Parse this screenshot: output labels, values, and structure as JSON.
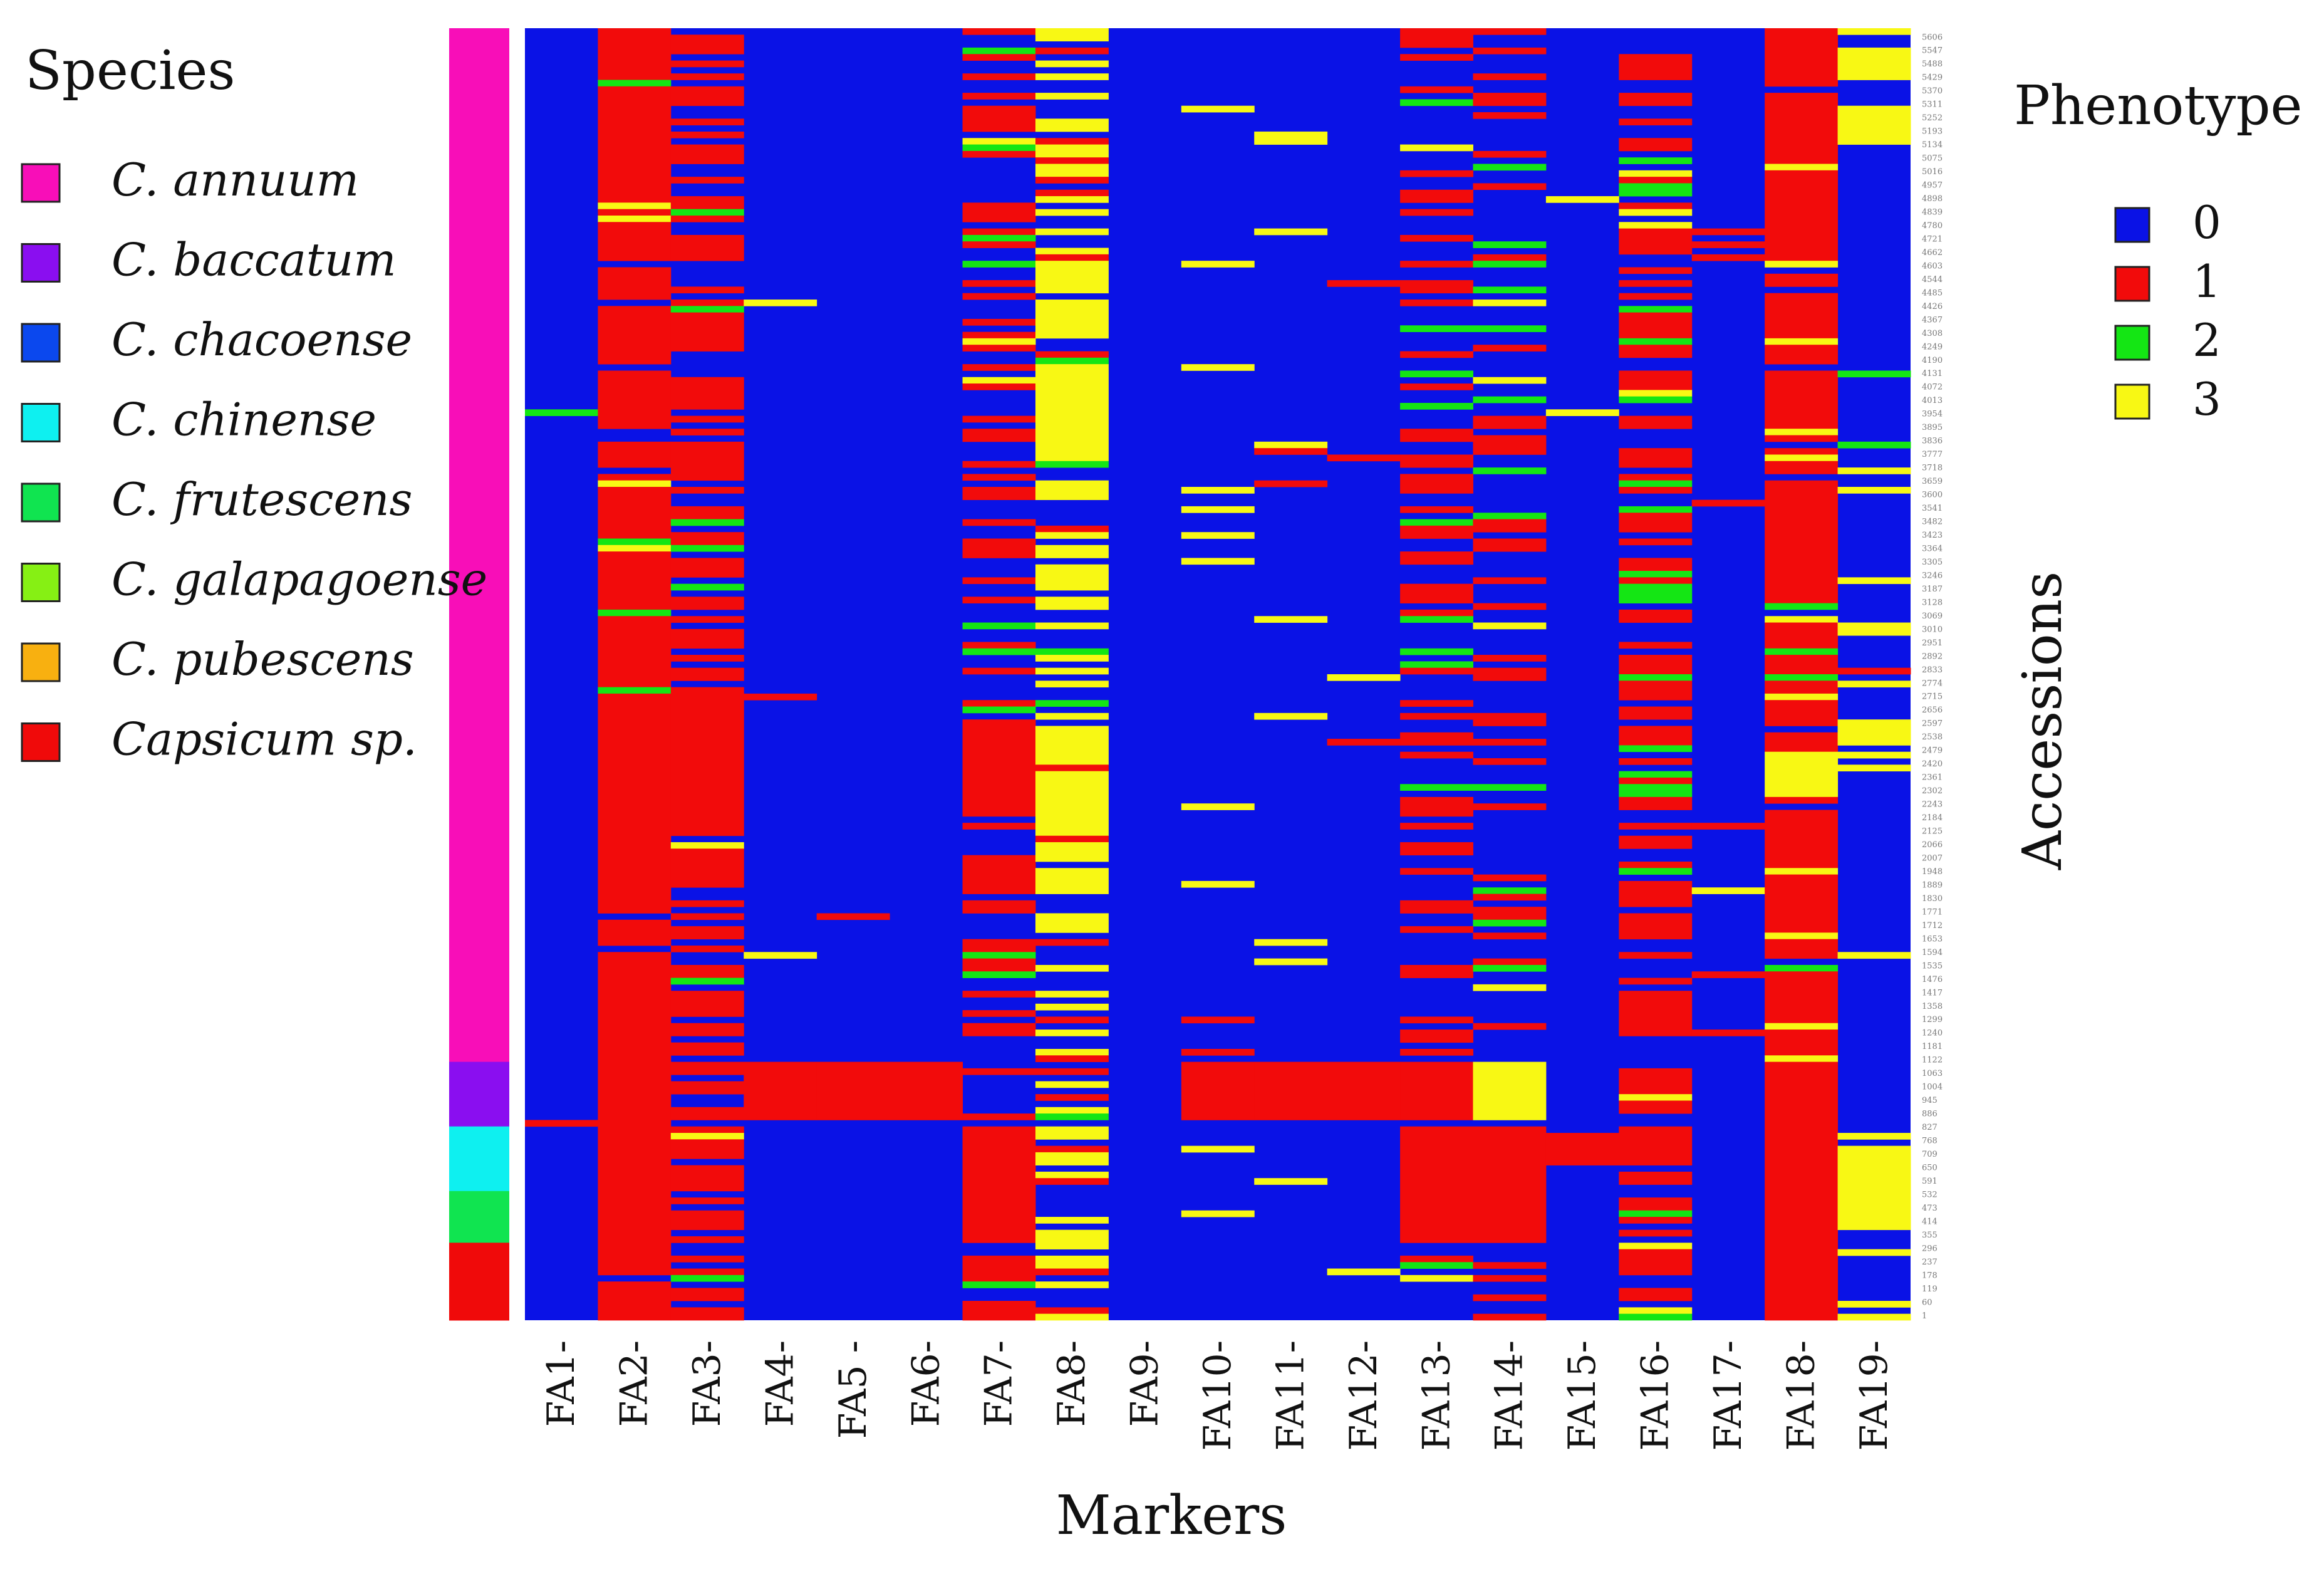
{
  "colors": {
    "phenotype": [
      "#0a12e6",
      "#f20b0b",
      "#14e614",
      "#f8f814"
    ],
    "species": [
      "#f80eb8",
      "#8a0ef0",
      "#0b48ee",
      "#0ef0f0",
      "#10e450",
      "#86f014",
      "#f8b010",
      "#f00a0a"
    ]
  },
  "legend_species": {
    "title": "Species",
    "items": [
      "C. annuum",
      "C. baccatum",
      "C. chacoense",
      "C. chinense",
      "C. frutescens",
      "C. galapagoense",
      "C. pubescens",
      "Capsicum sp."
    ]
  },
  "legend_phenotype": {
    "title": "Phenotype",
    "items": [
      "0",
      "1",
      "2",
      "3"
    ]
  },
  "chart_data": {
    "type": "heatmap",
    "xlabel": "Markers",
    "ylabel": "Accessions",
    "markers": [
      "FA1-",
      "FA2-",
      "FA3-",
      "FA4-",
      "FA5 -",
      "FA6-",
      "FA7-",
      "FA8-",
      "FA9-",
      "FA10-",
      "FA11-",
      "FA12-",
      "FA13-",
      "FA14-",
      "FA15-",
      "FA16-",
      "FA17-",
      "FA18-",
      "FA19-"
    ],
    "n_accessions": 200,
    "species_groups": [
      {
        "species": "C. annuum",
        "start": 0,
        "end": 160
      },
      {
        "species": "C. baccatum",
        "start": 160,
        "end": 170
      },
      {
        "species": "C. chinense",
        "start": 170,
        "end": 180
      },
      {
        "species": "C. frutescens",
        "start": 180,
        "end": 188
      },
      {
        "species": "Capsicum sp.",
        "start": 188,
        "end": 200
      }
    ],
    "marker_profiles": [
      {
        "marker": "FA1-",
        "p_red": 0.005,
        "p_green": 0.003,
        "p_yellow": 0.003
      },
      {
        "marker": "FA2-",
        "p_red": 0.85,
        "p_green": 0.03,
        "p_yellow": 0.03
      },
      {
        "marker": "FA3-",
        "p_red": 0.55,
        "p_green": 0.06,
        "p_yellow": 0.02
      },
      {
        "marker": "FA4-",
        "p_red": 0.005,
        "p_green": 0.0,
        "p_yellow": 0.005
      },
      {
        "marker": "FA5 -",
        "p_red": 0.005,
        "p_green": 0.0,
        "p_yellow": 0.005
      },
      {
        "marker": "FA6-",
        "p_red": 0.005,
        "p_green": 0.0,
        "p_yellow": 0.005
      },
      {
        "marker": "FA7-",
        "p_red": 0.45,
        "p_green": 0.06,
        "p_yellow": 0.02
      },
      {
        "marker": "FA8-",
        "p_red": 0.08,
        "p_green": 0.02,
        "p_yellow": 0.45
      },
      {
        "marker": "FA9-",
        "p_red": 0.0,
        "p_green": 0.0,
        "p_yellow": 0.004
      },
      {
        "marker": "FA10-",
        "p_red": 0.01,
        "p_green": 0.0,
        "p_yellow": 0.04
      },
      {
        "marker": "FA11-",
        "p_red": 0.01,
        "p_green": 0.0,
        "p_yellow": 0.05
      },
      {
        "marker": "FA12-",
        "p_red": 0.01,
        "p_green": 0.0,
        "p_yellow": 0.02
      },
      {
        "marker": "FA13-",
        "p_red": 0.28,
        "p_green": 0.05,
        "p_yellow": 0.03
      },
      {
        "marker": "FA14-",
        "p_red": 0.28,
        "p_green": 0.05,
        "p_yellow": 0.03
      },
      {
        "marker": "FA15-",
        "p_red": 0.005,
        "p_green": 0.0,
        "p_yellow": 0.005
      },
      {
        "marker": "FA16-",
        "p_red": 0.5,
        "p_green": 0.1,
        "p_yellow": 0.03
      },
      {
        "marker": "FA17-",
        "p_red": 0.02,
        "p_green": 0.0,
        "p_yellow": 0.01
      },
      {
        "marker": "FA18-",
        "p_red": 0.88,
        "p_green": 0.02,
        "p_yellow": 0.05
      },
      {
        "marker": "FA19-",
        "p_red": 0.01,
        "p_green": 0.01,
        "p_yellow": 0.06
      }
    ],
    "block_values": [
      {
        "marker": "FA8-",
        "start": 55,
        "end": 67,
        "value": 3
      },
      {
        "marker": "FA18-",
        "start": 112,
        "end": 119,
        "value": 3
      },
      {
        "marker": "FA19-",
        "start": 4,
        "end": 8,
        "value": 3
      },
      {
        "marker": "FA19-",
        "start": 12,
        "end": 18,
        "value": 3
      },
      {
        "marker": "FA19-",
        "start": 107,
        "end": 111,
        "value": 3
      },
      {
        "marker": "FA2-",
        "start": 105,
        "end": 125,
        "value": 1
      },
      {
        "marker": "FA3-",
        "start": 105,
        "end": 125,
        "value": 1
      },
      {
        "marker": "FA2-",
        "start": 128,
        "end": 133,
        "value": 1
      },
      {
        "marker": "FA3-",
        "start": 128,
        "end": 133,
        "value": 1
      },
      {
        "marker": "FA7-",
        "start": 108,
        "end": 122,
        "value": 1
      },
      {
        "marker": "FA7-",
        "start": 128,
        "end": 133,
        "value": 1
      },
      {
        "marker": "FA2-",
        "start": 160,
        "end": 170,
        "value": 1
      },
      {
        "marker": "FA4-",
        "start": 160,
        "end": 169,
        "value": 1
      },
      {
        "marker": "FA5 -",
        "start": 160,
        "end": 169,
        "value": 1
      },
      {
        "marker": "FA6-",
        "start": 160,
        "end": 169,
        "value": 1
      },
      {
        "marker": "FA10-",
        "start": 160,
        "end": 169,
        "value": 1
      },
      {
        "marker": "FA11-",
        "start": 160,
        "end": 169,
        "value": 1
      },
      {
        "marker": "FA12-",
        "start": 160,
        "end": 169,
        "value": 1
      },
      {
        "marker": "FA13-",
        "start": 160,
        "end": 169,
        "value": 1
      },
      {
        "marker": "FA14-",
        "start": 160,
        "end": 169,
        "value": 3
      },
      {
        "marker": "FA18-",
        "start": 160,
        "end": 200,
        "value": 1
      },
      {
        "marker": "FA2-",
        "start": 170,
        "end": 188,
        "value": 1
      },
      {
        "marker": "FA7-",
        "start": 170,
        "end": 188,
        "value": 1
      },
      {
        "marker": "FA13-",
        "start": 170,
        "end": 188,
        "value": 1
      },
      {
        "marker": "FA14-",
        "start": 170,
        "end": 188,
        "value": 1
      },
      {
        "marker": "FA15-",
        "start": 171,
        "end": 176,
        "value": 1
      },
      {
        "marker": "FA19-",
        "start": 173,
        "end": 186,
        "value": 3
      },
      {
        "marker": "FA19-",
        "start": 199,
        "end": 200,
        "value": 3
      }
    ],
    "accession_labels": [
      "5606",
      "5547",
      "5488",
      "5429",
      "5370",
      "5311",
      "5252",
      "5193",
      "5134",
      "5075",
      "5016",
      "4957",
      "4898",
      "4839",
      "4780",
      "4721",
      "4662",
      "4603",
      "4544",
      "4485",
      "4426",
      "4367",
      "4308",
      "4249",
      "4190",
      "4131",
      "4072",
      "4013",
      "3954",
      "3895",
      "3836",
      "3777",
      "3718",
      "3659",
      "3600",
      "3541",
      "3482",
      "3423",
      "3364",
      "3305",
      "3246",
      "3187",
      "3128",
      "3069",
      "3010",
      "2951",
      "2892",
      "2833",
      "2774",
      "2715",
      "2656",
      "2597",
      "2538",
      "2479",
      "2420",
      "2361",
      "2302",
      "2243",
      "2184",
      "2125",
      "2066",
      "2007",
      "1948",
      "1889",
      "1830",
      "1771",
      "1712",
      "1653",
      "1594",
      "1535",
      "1476",
      "1417",
      "1358",
      "1299",
      "1240",
      "1181",
      "1122",
      "1063",
      "1004",
      "945",
      "886",
      "827",
      "768",
      "709",
      "650",
      "591",
      "532",
      "473",
      "414",
      "355",
      "296",
      "237",
      "178",
      "119",
      "60",
      "1"
    ]
  }
}
